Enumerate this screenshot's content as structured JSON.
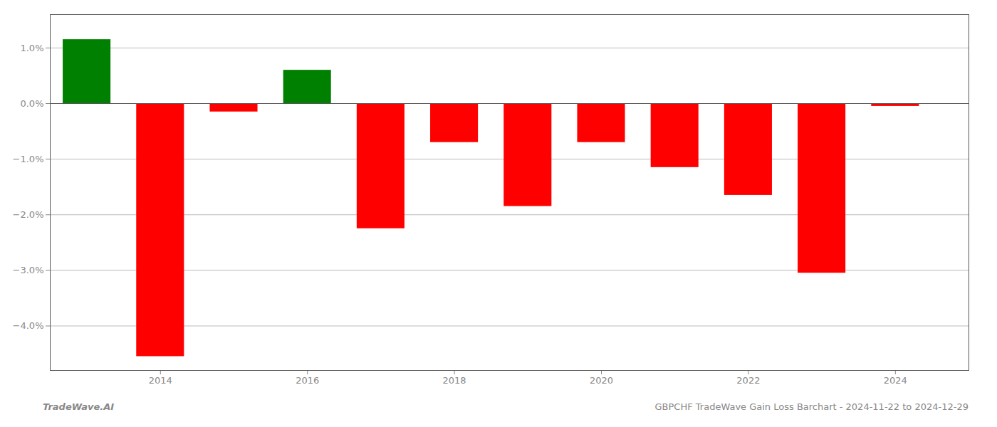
{
  "chart_data": {
    "type": "bar",
    "x": [
      2013,
      2014,
      2015,
      2016,
      2017,
      2018,
      2019,
      2020,
      2021,
      2022,
      2023,
      2024
    ],
    "values": [
      1.15,
      -4.55,
      -0.15,
      0.6,
      -2.25,
      -0.7,
      -1.85,
      -0.7,
      -1.15,
      -1.65,
      -3.05,
      -0.05
    ],
    "colors": [
      "#008000",
      "#ff0000",
      "#ff0000",
      "#008000",
      "#ff0000",
      "#ff0000",
      "#ff0000",
      "#ff0000",
      "#ff0000",
      "#ff0000",
      "#ff0000",
      "#ff0000"
    ],
    "xlim": [
      2012.5,
      2025.0
    ],
    "xticks": [
      2014,
      2016,
      2018,
      2020,
      2022,
      2024
    ],
    "ylim": [
      -4.8,
      1.6
    ],
    "yticks": [
      {
        "value": -4.0,
        "label": "−4.0%"
      },
      {
        "value": -3.0,
        "label": "−3.0%"
      },
      {
        "value": -2.0,
        "label": "−2.0%"
      },
      {
        "value": -1.0,
        "label": "−1.0%"
      },
      {
        "value": 0.0,
        "label": "0.0%"
      },
      {
        "value": 1.0,
        "label": "1.0%"
      }
    ],
    "grid": true,
    "annotations": [
      "TradeWave.AI",
      "GBPCHF TradeWave Gain Loss Barchart - 2024-11-22 to 2024-12-29"
    ]
  }
}
